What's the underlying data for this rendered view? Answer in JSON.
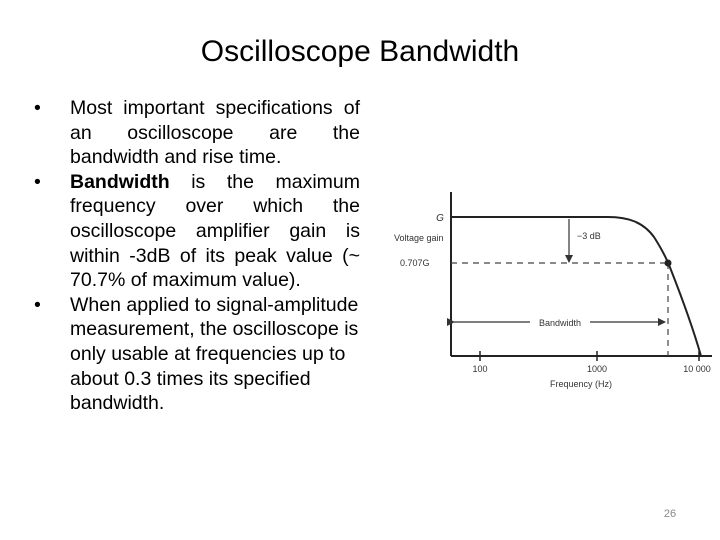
{
  "slide": {
    "title": "Oscilloscope Bandwidth",
    "bullets": [
      {
        "text": "Most important specifications of an oscilloscope are the bandwidth and rise time."
      },
      {
        "bold": "Bandwidth",
        "text": " is the maximum frequency over which the oscilloscope amplifier gain is within -3dB of its peak value (~ 70.7% of maximum value)."
      },
      {
        "text": "When applied to signal-amplitude measurement, the oscilloscope is only usable at frequencies up to about 0.3 times its specified bandwidth."
      }
    ],
    "page_number": "26"
  },
  "figure": {
    "y_axis_label": "Voltage gain",
    "g_label": "G",
    "g707_label": "0.707G",
    "db_label": "−3 dB",
    "bandwidth_label": "Bandwidth",
    "x_axis_label": "Frequency (Hz)",
    "x_ticks": [
      "100",
      "1000",
      "10 000"
    ],
    "colors": {
      "curve": "#222222",
      "text": "#333333"
    }
  }
}
